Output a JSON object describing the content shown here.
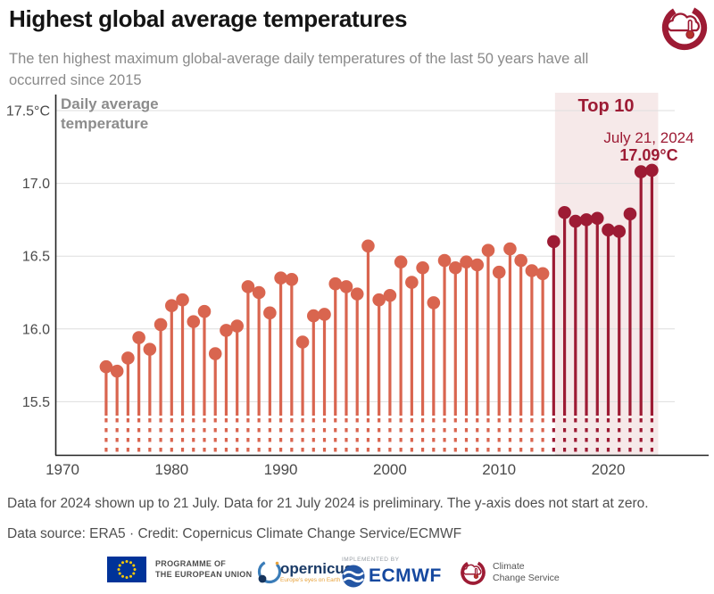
{
  "page": {
    "title": "Highest global average temperatures",
    "subtitle": "The ten highest maximum global-average daily temperatures of the last 50 years have all occurred since 2015",
    "footnote": "Data for 2024 shown up to 21 July. Data for 21 July 2024 is preliminary. The y-axis does not start at zero.",
    "source": "Data source: ERA5 · Credit: Copernicus Climate Change Service/ECMWF"
  },
  "logos": {
    "eu": {
      "line1": "PROGRAMME OF",
      "line2": "THE EUROPEAN UNION"
    },
    "copernicus": {
      "word": "opernicus",
      "tagline": "Europe's eyes on Earth"
    },
    "ecmwf": {
      "pre": "IMPLEMENTED BY",
      "word": "ECMWF"
    },
    "c3s": {
      "line1": "Climate",
      "line2": "Change Service"
    }
  },
  "chart_data": {
    "type": "lollipop",
    "title": "Daily average temperature",
    "unit": "°C",
    "x": [
      1974,
      1975,
      1976,
      1977,
      1978,
      1979,
      1980,
      1981,
      1982,
      1983,
      1984,
      1985,
      1986,
      1987,
      1988,
      1989,
      1990,
      1991,
      1992,
      1993,
      1994,
      1995,
      1996,
      1997,
      1998,
      1999,
      2000,
      2001,
      2002,
      2003,
      2004,
      2005,
      2006,
      2007,
      2008,
      2009,
      2010,
      2011,
      2012,
      2013,
      2014,
      2015,
      2016,
      2017,
      2018,
      2019,
      2020,
      2021,
      2022,
      2023,
      2024
    ],
    "values": [
      15.74,
      15.71,
      15.8,
      15.94,
      15.86,
      16.03,
      16.16,
      16.2,
      16.05,
      16.12,
      15.83,
      15.99,
      16.02,
      16.29,
      16.25,
      16.11,
      16.35,
      16.34,
      15.91,
      16.09,
      16.1,
      16.31,
      16.29,
      16.24,
      16.57,
      16.2,
      16.23,
      16.46,
      16.32,
      16.42,
      16.18,
      16.47,
      16.42,
      16.46,
      16.44,
      16.54,
      16.39,
      16.55,
      16.47,
      16.4,
      16.38,
      16.6,
      16.8,
      16.74,
      16.75,
      16.76,
      16.68,
      16.67,
      16.79,
      17.08,
      17.09
    ],
    "x_ticks": [
      1970,
      1980,
      1990,
      2000,
      2010,
      2020
    ],
    "y_tick_values": [
      17.5,
      17.0,
      16.5,
      16.0,
      15.5
    ],
    "y_tick_labels": [
      "17.5°C",
      "17.0",
      "16.5",
      "16.0",
      "15.5"
    ],
    "ylim": [
      15.5,
      17.5
    ],
    "grid": true,
    "axis_break": true,
    "top10": {
      "label": "Top 10",
      "from_year": 2015,
      "to_year": 2024
    },
    "annotations": {
      "date": "July 21, 2024",
      "record": "17.09°C"
    },
    "colors": {
      "point": "#d9654f",
      "top10_point": "#9d1b34",
      "band": "#f6e9e9",
      "accent_text": "#9d1b34",
      "grid": "#dedede",
      "axis": "#222222"
    }
  }
}
